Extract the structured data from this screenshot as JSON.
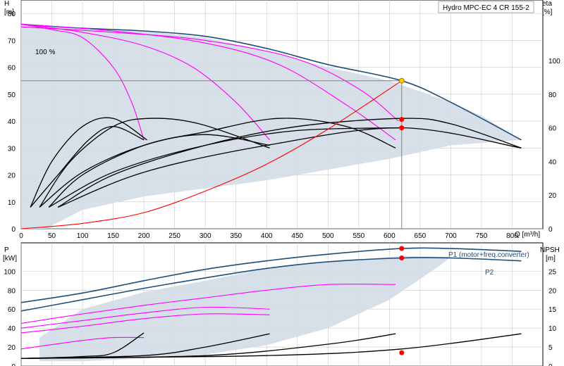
{
  "chart_data": [
    {
      "type": "line",
      "title": "Hydro MPC-EC 4 CR 155-2",
      "xlabel": "Q [m³/h]",
      "ylabel": "H\n[m]",
      "y2label": "eta\n[%]",
      "xlim": [
        0,
        850
      ],
      "ylim": [
        0,
        85
      ],
      "y2lim": [
        0,
        136
      ],
      "x_ticks": [
        0,
        50,
        100,
        150,
        200,
        250,
        300,
        350,
        400,
        450,
        500,
        550,
        600,
        650,
        700,
        750,
        800
      ],
      "y_ticks": [
        0,
        10,
        20,
        30,
        40,
        50,
        60,
        70,
        80
      ],
      "y2_ticks": [
        0,
        20,
        40,
        60,
        80,
        100
      ],
      "grid": true,
      "annotations": [
        {
          "text": "100 %",
          "x": 30,
          "y": 76
        }
      ],
      "duty_point": {
        "Q": 620,
        "H": 55
      },
      "eta_markers": [
        {
          "Q": 620,
          "eta": 65
        },
        {
          "Q": 620,
          "eta": 60
        }
      ],
      "envelope": [
        [
          0,
          76
        ],
        [
          100,
          74.5
        ],
        [
          200,
          73.5
        ],
        [
          300,
          71
        ],
        [
          400,
          66
        ],
        [
          500,
          60
        ],
        [
          600,
          55
        ],
        [
          700,
          47
        ],
        [
          750,
          42
        ],
        [
          815,
          33
        ],
        [
          700,
          31
        ],
        [
          600,
          26
        ],
        [
          500,
          22
        ],
        [
          400,
          18
        ],
        [
          300,
          15
        ],
        [
          200,
          12
        ],
        [
          100,
          7
        ],
        [
          40,
          0
        ],
        [
          0,
          0
        ]
      ],
      "series": [
        {
          "name": "",
          "color": "#1f4e79",
          "values": [
            [
              0,
              76
            ],
            [
              100,
              74.5
            ],
            [
              200,
              73.5
            ],
            [
              300,
              71.5
            ],
            [
              400,
              67
            ],
            [
              500,
              61
            ],
            [
              620,
              55
            ],
            [
              700,
              47
            ],
            [
              815,
              33
            ]
          ]
        },
        {
          "name": "",
          "color": "#ff00ff",
          "values": [
            [
              0,
              76
            ],
            [
              50,
              74
            ],
            [
              100,
              71
            ],
            [
              150,
              60
            ],
            [
              180,
              47
            ],
            [
              200,
              33
            ]
          ]
        },
        {
          "name": "",
          "color": "#ff00ff",
          "values": [
            [
              0,
              76
            ],
            [
              100,
              73
            ],
            [
              200,
              68
            ],
            [
              280,
              60
            ],
            [
              350,
              47
            ],
            [
              405,
              33
            ]
          ]
        },
        {
          "name": "",
          "color": "#ff00ff",
          "values": [
            [
              0,
              76
            ],
            [
              150,
              73.5
            ],
            [
              300,
              69
            ],
            [
              420,
              61
            ],
            [
              530,
              46
            ],
            [
              610,
              33
            ]
          ]
        },
        {
          "name": "",
          "color": "#ff00ff",
          "values": [
            [
              0,
              75
            ],
            [
              150,
              73
            ],
            [
              300,
              70
            ],
            [
              450,
              63
            ],
            [
              550,
              52
            ],
            [
              615,
              40
            ]
          ]
        },
        {
          "name": "",
          "color": "#000000",
          "values": [
            [
              15,
              8
            ],
            [
              50,
              25
            ],
            [
              100,
              38
            ],
            [
              150,
              41
            ],
            [
              205,
              33
            ]
          ]
        },
        {
          "name": "",
          "color": "#000000",
          "values": [
            [
              30,
              8
            ],
            [
              80,
              25
            ],
            [
              150,
              38
            ],
            [
              210,
              41
            ],
            [
              290,
              39
            ],
            [
              405,
              30
            ]
          ]
        },
        {
          "name": "",
          "color": "#000000",
          "values": [
            [
              45,
              8
            ],
            [
              100,
              20
            ],
            [
              200,
              31
            ],
            [
              300,
              36
            ],
            [
              420,
              41
            ],
            [
              530,
              38
            ],
            [
              610,
              30
            ]
          ]
        },
        {
          "name": "",
          "color": "#000000",
          "values": [
            [
              60,
              8
            ],
            [
              150,
              20
            ],
            [
              300,
              31
            ],
            [
              450,
              38
            ],
            [
              620,
              41
            ],
            [
              700,
              39
            ],
            [
              815,
              30
            ]
          ]
        },
        {
          "name": "",
          "color": "#000000",
          "values": [
            [
              15,
              8
            ],
            [
              60,
              20
            ],
            [
              110,
              33
            ],
            [
              150,
              38
            ],
            [
              200,
              33
            ]
          ]
        },
        {
          "name": "",
          "color": "#000000",
          "values": [
            [
              30,
              8
            ],
            [
              100,
              21
            ],
            [
              200,
              31
            ],
            [
              300,
              35
            ],
            [
              405,
              31
            ]
          ]
        },
        {
          "name": "",
          "color": "#000000",
          "values": [
            [
              45,
              8
            ],
            [
              150,
              21
            ],
            [
              300,
              31
            ],
            [
              450,
              36.5
            ],
            [
              620,
              37.5
            ]
          ]
        },
        {
          "name": "",
          "color": "#000000",
          "values": [
            [
              60,
              8
            ],
            [
              200,
              21
            ],
            [
              400,
              31
            ],
            [
              620,
              37.5
            ],
            [
              815,
              30
            ]
          ]
        },
        {
          "name": "",
          "color": "#ff0000",
          "values": [
            [
              0,
              0
            ],
            [
              100,
              2
            ],
            [
              200,
              6
            ],
            [
              300,
              14
            ],
            [
              400,
              24
            ],
            [
              500,
              37
            ],
            [
              620,
              55
            ]
          ]
        }
      ]
    },
    {
      "type": "line",
      "xlabel": "",
      "ylabel": "P\n[kW]",
      "y2label": "NPSH\n[m]",
      "xlim": [
        0,
        850
      ],
      "ylim": [
        0,
        130
      ],
      "y2lim": [
        0,
        32.5
      ],
      "y_ticks": [
        0,
        20,
        40,
        60,
        80,
        100
      ],
      "y2_ticks": [
        0,
        5,
        10,
        15,
        20,
        25
      ],
      "grid": true,
      "envelope": [
        [
          30,
          30
        ],
        [
          100,
          60
        ],
        [
          200,
          78
        ],
        [
          300,
          90
        ],
        [
          400,
          103
        ],
        [
          500,
          110
        ],
        [
          620,
          116
        ],
        [
          700,
          115
        ],
        [
          680,
          105
        ],
        [
          600,
          70
        ],
        [
          500,
          40
        ],
        [
          400,
          22
        ],
        [
          300,
          12
        ],
        [
          200,
          8
        ],
        [
          100,
          5
        ],
        [
          30,
          5
        ]
      ],
      "series": [
        {
          "name": "P1 (motor+freq.converter)",
          "color": "#1f4e79",
          "values": [
            [
              0,
              67
            ],
            [
              100,
              77
            ],
            [
              200,
              90
            ],
            [
              300,
              102
            ],
            [
              400,
              111
            ],
            [
              500,
              118
            ],
            [
              620,
              124
            ],
            [
              700,
              124
            ],
            [
              815,
              121
            ]
          ]
        },
        {
          "name": "P2",
          "color": "#1f4e79",
          "values": [
            [
              0,
              58
            ],
            [
              100,
              70
            ],
            [
              200,
              82
            ],
            [
              300,
              93
            ],
            [
              400,
              103
            ],
            [
              500,
              110
            ],
            [
              620,
              114
            ],
            [
              700,
              114
            ],
            [
              815,
              111
            ]
          ]
        },
        {
          "name": "",
          "color": "#ff00ff",
          "values": [
            [
              0,
              45
            ],
            [
              100,
              55
            ],
            [
              200,
              64
            ],
            [
              300,
              72
            ],
            [
              400,
              80
            ],
            [
              500,
              86
            ],
            [
              610,
              86
            ]
          ]
        },
        {
          "name": "",
          "color": "#ff00ff",
          "values": [
            [
              0,
              40
            ],
            [
              100,
              48
            ],
            [
              200,
              56
            ],
            [
              300,
              62
            ],
            [
              405,
              60
            ]
          ]
        },
        {
          "name": "",
          "color": "#ff00ff",
          "values": [
            [
              0,
              35
            ],
            [
              100,
              42
            ],
            [
              200,
              50
            ],
            [
              300,
              55
            ],
            [
              405,
              54
            ]
          ]
        },
        {
          "name": "",
          "color": "#ff00ff",
          "values": [
            [
              0,
              18
            ],
            [
              100,
              27
            ],
            [
              150,
              30
            ],
            [
              200,
              30
            ]
          ]
        },
        {
          "name": "",
          "color": "#000000",
          "values": [
            [
              0,
              8
            ],
            [
              100,
              10
            ],
            [
              150,
              14
            ],
            [
              200,
              35
            ]
          ]
        },
        {
          "name": "",
          "color": "#000000",
          "values": [
            [
              0,
              8
            ],
            [
              200,
              11
            ],
            [
              300,
              20
            ],
            [
              405,
              34
            ]
          ]
        },
        {
          "name": "",
          "color": "#000000",
          "values": [
            [
              0,
              8
            ],
            [
              300,
              11
            ],
            [
              500,
              23
            ],
            [
              610,
              34
            ]
          ]
        },
        {
          "name": "",
          "color": "#000000",
          "values": [
            [
              0,
              8
            ],
            [
              400,
              11
            ],
            [
              620,
              18
            ],
            [
              815,
              34
            ]
          ]
        }
      ],
      "markers": [
        {
          "Q": 620,
          "P": 124
        },
        {
          "Q": 620,
          "P": 114
        },
        {
          "Q": 620,
          "NPSH": 3.5
        }
      ]
    }
  ]
}
